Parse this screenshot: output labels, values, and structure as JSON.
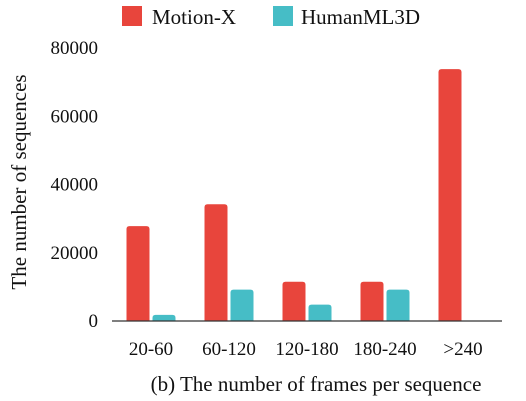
{
  "chart_data": {
    "type": "bar",
    "categories": [
      "20-60",
      "60-120",
      "120-180",
      "180-240",
      ">240"
    ],
    "series": [
      {
        "name": "Motion-X",
        "color": "#e8453c",
        "values": [
          27800,
          34200,
          11500,
          11500,
          73800
        ]
      },
      {
        "name": "HumanML3D",
        "color": "#46bdc6",
        "values": [
          1800,
          9200,
          4800,
          9200,
          0
        ]
      }
    ],
    "xlabel": "(b) The number of frames per sequence",
    "ylabel": "The number of sequences",
    "ylim": [
      0,
      80000
    ],
    "yticks": [
      0,
      20000,
      40000,
      60000,
      80000
    ],
    "legend_position": "top",
    "grid": false
  }
}
